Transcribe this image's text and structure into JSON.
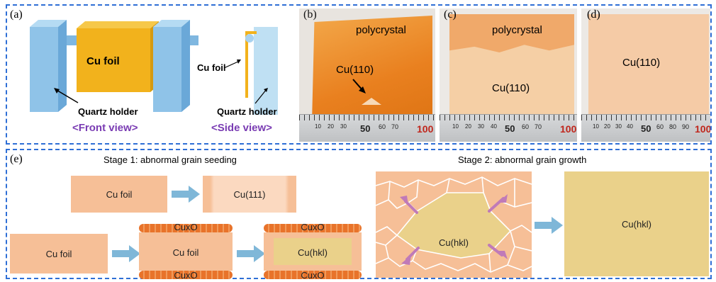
{
  "panels": {
    "a": {
      "label": "(a)",
      "cu_foil": "Cu foil",
      "quartz_holder_front": "Quartz holder",
      "front_view": "<Front view>",
      "cu_foil_side": "Cu foil",
      "quartz_holder_side": "Quartz holder",
      "side_view": "<Side view>"
    },
    "b": {
      "label": "(b)",
      "polycrystal": "polycrystal",
      "grain": "Cu(110)"
    },
    "c": {
      "label": "(c)",
      "polycrystal": "polycrystal",
      "grain": "Cu(110)"
    },
    "d": {
      "label": "(d)",
      "grain": "Cu(110)"
    },
    "ruler": {
      "n10": "10",
      "n20": "20",
      "n30": "30",
      "n40": "40",
      "n50": "50",
      "n60": "60",
      "n70": "70",
      "n80": "80",
      "n90": "90",
      "n100": "100"
    },
    "e": {
      "label": "(e)",
      "stage1_title": "Stage 1: abnormal grain seeding",
      "stage2_title": "Stage 2: abnormal grain growth",
      "foil_top": "Cu foil",
      "cu111": "Cu(111)",
      "foil_bottom": "Cu foil",
      "foil_oxidized": "Cu foil",
      "cuxo_top_1": "CuxO",
      "cuxo_bottom_1": "CuxO",
      "cuhkl_center": "Cu(hkl)",
      "cuxo_top_2": "CuxO",
      "cuxo_bottom_2": "CuxO",
      "cuhkl_growth": "Cu(hkl)",
      "cuhkl_final": "Cu(hkl)"
    }
  },
  "colors": {
    "frame": "#2f6fd6",
    "holder": "#8fc3e8",
    "foil_gold": "#f2b21c",
    "foil_pink": "#f6c7a0",
    "oxide": "#e8732a",
    "final": "#ead18a",
    "arrow": "#7fb7d8"
  }
}
